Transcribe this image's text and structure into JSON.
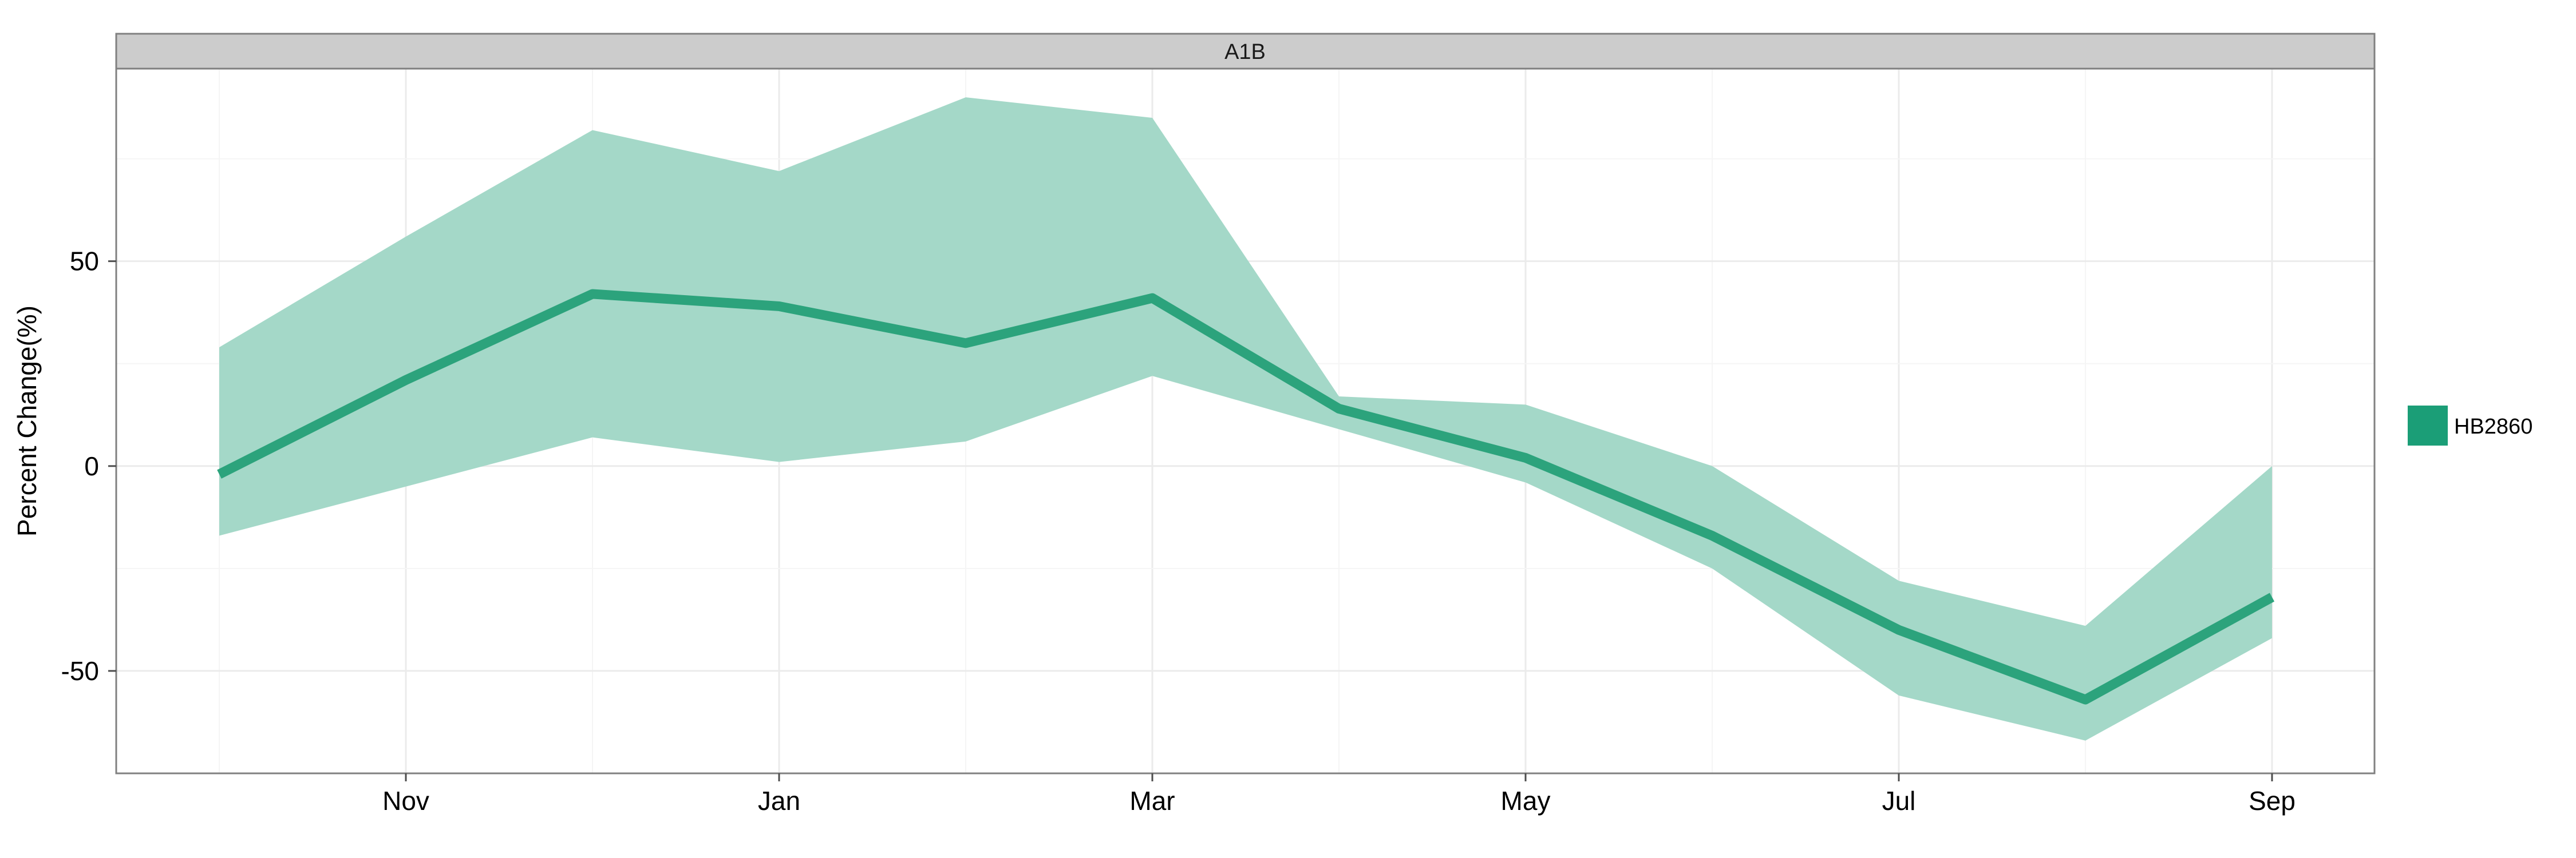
{
  "chart_data": {
    "type": "area",
    "facet_label": "A1B",
    "xlabel": "",
    "ylabel": "Percent Change(%)",
    "x": [
      "Oct",
      "Nov",
      "Dec",
      "Jan",
      "Feb",
      "Mar",
      "Apr",
      "May",
      "Jun",
      "Jul",
      "Aug",
      "Sep"
    ],
    "x_tick_labels": [
      "Nov",
      "Jan",
      "Mar",
      "May",
      "Jul",
      "Sep"
    ],
    "y_tick_labels": [
      "-50",
      "0",
      "50"
    ],
    "y_ticks": [
      -50,
      0,
      50
    ],
    "ylim": [
      -75,
      97
    ],
    "grid": true,
    "legend_position": "right",
    "series": [
      {
        "name": "HB2860",
        "mean": [
          -2,
          21,
          42,
          39,
          30,
          41,
          14,
          2,
          -17,
          -40,
          -57,
          -32
        ],
        "lower": [
          -17,
          -5,
          7,
          1,
          6,
          22,
          9,
          -4,
          -25,
          -56,
          -67,
          -42
        ],
        "upper": [
          29,
          56,
          82,
          72,
          90,
          85,
          17,
          15,
          0,
          -28,
          -39,
          0
        ],
        "line_color": "#2ca37c",
        "ribbon_color": "#a4d8c8",
        "legend_color": "#1b9e77"
      }
    ]
  }
}
